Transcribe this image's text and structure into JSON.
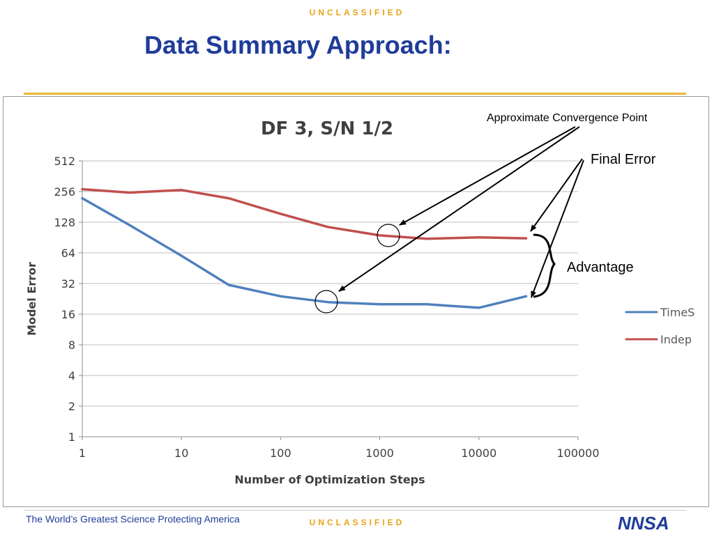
{
  "header": {
    "classification": "UNCLASSIFIED",
    "title": "Data Summary Approach:"
  },
  "footer": {
    "tagline": "The World’s Greatest Science Protecting America",
    "classification": "UNCLASSIFIED",
    "logo_text": "NNSA"
  },
  "colors": {
    "title": "#1f3c99",
    "classification": "#e8a317",
    "accent_rule": "#e8b82f",
    "times_series": "#4f81bd",
    "indep_series": "#c0504d"
  },
  "annotations": {
    "convergence": "Approximate Convergence Point",
    "final_error": "Final Error",
    "advantage": "Advantage"
  },
  "chart_data": {
    "type": "line",
    "title": "DF 3, S/N 1/2",
    "xlabel": "Number of Optimization Steps",
    "ylabel": "Model Error",
    "x_scale": "log10",
    "y_scale": "log2",
    "xlim": [
      1,
      100000
    ],
    "ylim": [
      1,
      512
    ],
    "x_ticks": [
      "1",
      "10",
      "100",
      "1000",
      "10000",
      "100000"
    ],
    "y_ticks": [
      "1",
      "2",
      "4",
      "8",
      "16",
      "32",
      "64",
      "128",
      "256",
      "512"
    ],
    "grid": "horizontal",
    "legend": "right",
    "series": [
      {
        "name": "TimeS",
        "points": [
          [
            1,
            220
          ],
          [
            3,
            120
          ],
          [
            10,
            60
          ],
          [
            30,
            31
          ],
          [
            100,
            24
          ],
          [
            300,
            21
          ],
          [
            1000,
            20
          ],
          [
            3000,
            20
          ],
          [
            10000,
            18.5
          ],
          [
            30000,
            24
          ]
        ]
      },
      {
        "name": "Indep",
        "points": [
          [
            1,
            270
          ],
          [
            3,
            250
          ],
          [
            10,
            265
          ],
          [
            30,
            220
          ],
          [
            100,
            155
          ],
          [
            300,
            115
          ],
          [
            1000,
            95
          ],
          [
            3000,
            88
          ],
          [
            10000,
            91
          ],
          [
            30000,
            89
          ]
        ]
      }
    ]
  }
}
